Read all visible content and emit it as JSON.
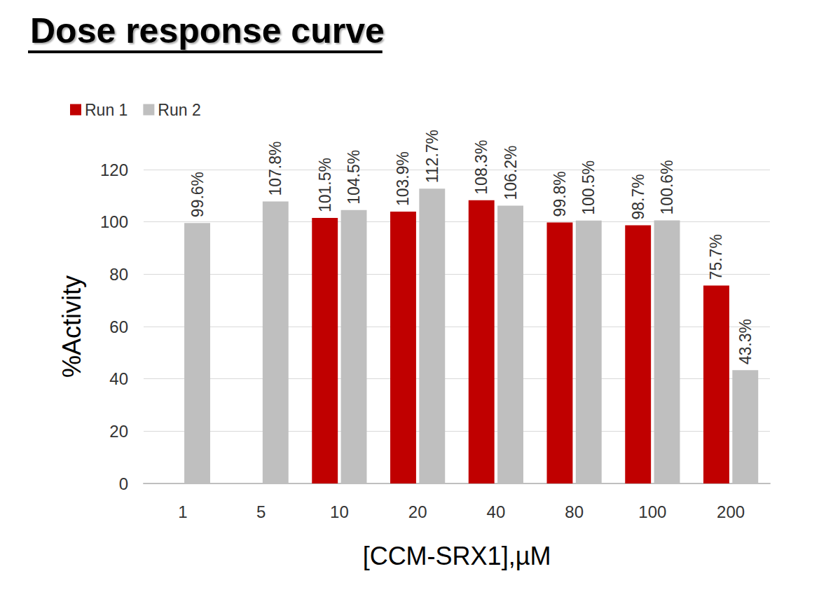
{
  "chart_data": {
    "type": "bar",
    "title": "Dose response curve",
    "x_label": "[CCM-SRX1],µM",
    "y_label": "%Activity",
    "categories": [
      "1",
      "5",
      "10",
      "20",
      "40",
      "80",
      "100",
      "200"
    ],
    "series": [
      {
        "name": "Run 1",
        "color": "#c00000",
        "values": [
          null,
          null,
          101.5,
          103.9,
          108.3,
          99.8,
          98.7,
          75.7
        ],
        "value_labels": [
          null,
          null,
          "101.5%",
          "103.9%",
          "108.3%",
          "99.8%",
          "98.7%",
          "75.7%"
        ]
      },
      {
        "name": "Run 2",
        "color": "#bfbfbf",
        "values": [
          99.6,
          107.8,
          104.5,
          112.7,
          106.2,
          100.5,
          100.6,
          43.3
        ],
        "value_labels": [
          "99.6%",
          "107.8%",
          "104.5%",
          "112.7%",
          "106.2%",
          "100.5%",
          "100.6%",
          "43.3%"
        ]
      }
    ],
    "ylim": [
      0,
      120
    ],
    "yticks": [
      0,
      20,
      40,
      60,
      80,
      100,
      120
    ],
    "grid": true,
    "legend": "top-left",
    "data_labels": true
  }
}
